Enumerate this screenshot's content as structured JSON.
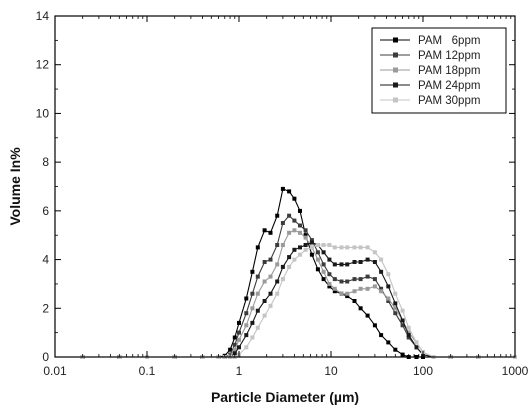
{
  "chart_data": {
    "type": "line",
    "xscale": "log",
    "xlabel": "Particle Diameter (µm)",
    "ylabel": "Volume In%",
    "xlim": [
      0.01,
      1000
    ],
    "ylim": [
      0,
      14
    ],
    "x_ticks": [
      0.01,
      0.1,
      1,
      10,
      100,
      1000
    ],
    "x_tick_labels": [
      "0.01",
      "0.1",
      "1",
      "10",
      "100",
      "1000"
    ],
    "y_ticks": [
      0,
      2,
      4,
      6,
      8,
      10,
      12,
      14
    ],
    "y_tick_labels": [
      "0",
      "2",
      "4",
      "6",
      "8",
      "10",
      "12",
      "14"
    ],
    "legend_position": "top-right",
    "grid": false,
    "series": [
      {
        "name": "PAM   6ppm",
        "color": "#000000",
        "x": [
          0.02,
          0.05,
          0.1,
          0.2,
          0.4,
          0.6,
          0.7,
          0.8,
          0.9,
          1.0,
          1.2,
          1.4,
          1.6,
          1.9,
          2.2,
          2.6,
          3.0,
          3.5,
          4.0,
          4.6,
          5.3,
          6.2,
          7.2,
          8.3,
          9.6,
          11,
          13,
          15,
          18,
          21,
          25,
          30,
          35,
          42,
          50,
          60,
          70,
          85,
          100,
          130,
          200,
          400,
          1000
        ],
        "y": [
          0,
          0,
          0,
          0,
          0,
          0,
          0.05,
          0.3,
          0.8,
          1.4,
          2.4,
          3.5,
          4.5,
          5.2,
          5.1,
          5.8,
          6.9,
          6.8,
          6.5,
          6.0,
          5.0,
          4.2,
          3.6,
          3.2,
          2.9,
          2.7,
          2.6,
          2.5,
          2.3,
          2.0,
          1.7,
          1.3,
          0.9,
          0.6,
          0.3,
          0.1,
          0,
          0,
          0,
          0,
          0,
          0,
          0
        ]
      },
      {
        "name": "PAM 12ppm",
        "color": "#3c3c3c",
        "x": [
          0.02,
          0.05,
          0.1,
          0.2,
          0.4,
          0.6,
          0.7,
          0.8,
          0.9,
          1.0,
          1.2,
          1.4,
          1.6,
          1.9,
          2.2,
          2.6,
          3.0,
          3.5,
          4.0,
          4.6,
          5.3,
          6.2,
          7.2,
          8.3,
          9.6,
          11,
          13,
          15,
          18,
          21,
          25,
          30,
          35,
          42,
          50,
          60,
          70,
          85,
          100,
          130,
          200,
          400,
          1000
        ],
        "y": [
          0,
          0,
          0,
          0,
          0,
          0,
          0,
          0.1,
          0.5,
          1.0,
          1.8,
          2.6,
          3.3,
          3.9,
          4.0,
          4.6,
          5.5,
          5.8,
          5.6,
          5.4,
          5.2,
          4.8,
          4.3,
          3.8,
          3.4,
          3.2,
          3.1,
          3.1,
          3.2,
          3.2,
          3.3,
          3.2,
          2.8,
          2.3,
          1.8,
          1.3,
          0.8,
          0.4,
          0.1,
          0,
          0,
          0,
          0
        ]
      },
      {
        "name": "PAM 18ppm",
        "color": "#9a9a9a",
        "x": [
          0.02,
          0.05,
          0.1,
          0.2,
          0.4,
          0.6,
          0.7,
          0.8,
          0.9,
          1.0,
          1.2,
          1.4,
          1.6,
          1.9,
          2.2,
          2.6,
          3.0,
          3.5,
          4.0,
          4.6,
          5.3,
          6.2,
          7.2,
          8.3,
          9.6,
          11,
          13,
          15,
          18,
          21,
          25,
          30,
          35,
          42,
          50,
          60,
          70,
          85,
          100,
          130,
          200,
          400,
          1000
        ],
        "y": [
          0,
          0,
          0,
          0,
          0,
          0,
          0,
          0.05,
          0.3,
          0.7,
          1.3,
          2.0,
          2.6,
          3.1,
          3.3,
          3.8,
          4.6,
          5.1,
          5.2,
          5.1,
          4.9,
          4.5,
          4.0,
          3.5,
          3.0,
          2.8,
          2.6,
          2.6,
          2.7,
          2.8,
          2.8,
          2.9,
          2.7,
          2.4,
          2.0,
          1.5,
          1.0,
          0.6,
          0.2,
          0,
          0,
          0,
          0
        ]
      },
      {
        "name": "PAM 24ppm",
        "color": "#1a1a1a",
        "x": [
          0.02,
          0.05,
          0.1,
          0.2,
          0.4,
          0.6,
          0.7,
          0.8,
          0.9,
          1.0,
          1.2,
          1.4,
          1.6,
          1.9,
          2.2,
          2.6,
          3.0,
          3.5,
          4.0,
          4.6,
          5.3,
          6.2,
          7.2,
          8.3,
          9.6,
          11,
          13,
          15,
          18,
          21,
          25,
          30,
          35,
          42,
          50,
          60,
          70,
          85,
          100,
          130,
          200,
          400,
          1000
        ],
        "y": [
          0,
          0,
          0,
          0,
          0,
          0,
          0,
          0,
          0.15,
          0.4,
          0.9,
          1.4,
          1.9,
          2.3,
          2.6,
          3.1,
          3.7,
          4.1,
          4.4,
          4.5,
          4.6,
          4.7,
          4.6,
          4.3,
          4.0,
          3.8,
          3.8,
          3.8,
          3.9,
          3.9,
          4.0,
          3.9,
          3.5,
          2.9,
          2.2,
          1.5,
          0.9,
          0.4,
          0.1,
          0,
          0,
          0,
          0
        ]
      },
      {
        "name": "PAM 30ppm",
        "color": "#c4c4c4",
        "x": [
          0.02,
          0.05,
          0.1,
          0.2,
          0.4,
          0.6,
          0.7,
          0.8,
          0.9,
          1.0,
          1.2,
          1.4,
          1.6,
          1.9,
          2.2,
          2.6,
          3.0,
          3.5,
          4.0,
          4.6,
          5.3,
          6.2,
          7.2,
          8.3,
          9.6,
          11,
          13,
          15,
          18,
          21,
          25,
          30,
          35,
          42,
          50,
          60,
          70,
          85,
          100,
          130,
          200,
          400,
          1000
        ],
        "y": [
          0,
          0,
          0,
          0,
          0,
          0,
          0,
          0,
          0,
          0.1,
          0.4,
          0.8,
          1.2,
          1.7,
          2.1,
          2.6,
          3.2,
          3.7,
          4.0,
          4.2,
          4.4,
          4.5,
          4.6,
          4.6,
          4.6,
          4.5,
          4.5,
          4.5,
          4.5,
          4.5,
          4.5,
          4.3,
          4.0,
          3.4,
          2.6,
          1.9,
          1.2,
          0.6,
          0.2,
          0,
          0,
          0,
          0
        ]
      }
    ]
  }
}
